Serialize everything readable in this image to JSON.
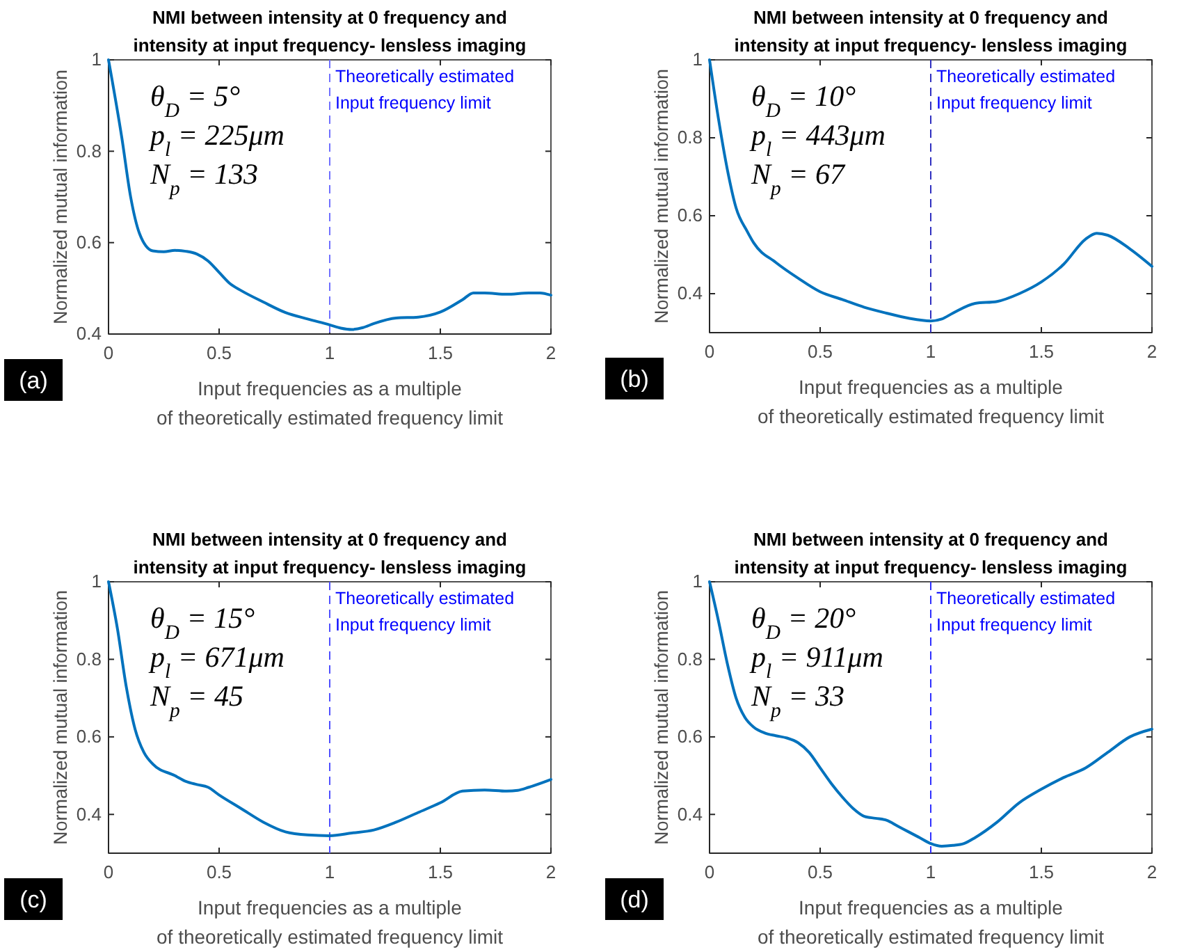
{
  "chart_data": [
    {
      "type": "line",
      "title": "NMI between intensity at 0 frequency and\nintensity at input frequency- lensless imaging",
      "xlabel": "Input frequencies as a multiple\nof theoretically estimated frequency limit",
      "ylabel": "Normalized mutual information",
      "xlim": [
        0,
        2
      ],
      "xticks": [
        0,
        0.5,
        1,
        1.5,
        2
      ],
      "ylim": [
        0.4,
        1
      ],
      "yticks": [
        0.4,
        0.6,
        0.8,
        1
      ],
      "grid": false,
      "marker": "none",
      "line_style": "solid",
      "ref_lines": [
        {
          "axis": "x",
          "value": 1,
          "label": "Theoretically estimated\nInput frequency limit",
          "color": "#7070ff",
          "line_style": "dashed"
        }
      ],
      "annotations": [
        "θ$_{D}$ = 5°",
        "p$_{l}$ = 225μm",
        "N$_{p}$ = 133",
        "(a)"
      ],
      "series": [
        {
          "color": "#0072bd",
          "x": [
            0,
            0.06,
            0.1,
            0.14,
            0.2,
            0.25,
            0.3,
            0.35,
            0.4,
            0.45,
            0.5,
            0.55,
            0.6,
            0.7,
            0.8,
            0.9,
            1.0,
            1.05,
            1.1,
            1.15,
            1.2,
            1.3,
            1.4,
            1.5,
            1.6,
            1.65,
            1.7,
            1.8,
            1.9,
            1.95,
            2.0
          ],
          "values": [
            1.0,
            0.83,
            0.7,
            0.62,
            0.582,
            0.58,
            0.583,
            0.581,
            0.575,
            0.56,
            0.535,
            0.51,
            0.495,
            0.47,
            0.447,
            0.433,
            0.42,
            0.413,
            0.41,
            0.414,
            0.423,
            0.435,
            0.437,
            0.448,
            0.475,
            0.49,
            0.49,
            0.487,
            0.49,
            0.49,
            0.485
          ]
        }
      ]
    },
    {
      "type": "line",
      "title": "NMI between intensity at 0 frequency and\nintensity at input frequency- lensless imaging",
      "xlabel": "Input frequencies as a multiple\nof theoretically estimated frequency limit",
      "ylabel": "Normalized mutual information",
      "xlim": [
        0,
        2
      ],
      "xticks": [
        0,
        0.5,
        1,
        1.5,
        2
      ],
      "ylim": [
        0.3,
        1
      ],
      "yticks": [
        0.4,
        0.6,
        0.8,
        1
      ],
      "grid": false,
      "marker": "none",
      "line_style": "solid",
      "ref_lines": [
        {
          "axis": "x",
          "value": 1,
          "label": "Theoretically estimated\nInput frequency limit",
          "color": "#3030c0",
          "line_style": "dashed"
        }
      ],
      "annotations": [
        "θ$_{D}$ = 10°",
        "p$_{l}$ = 443μm",
        "N$_{p}$ = 67",
        "(b)"
      ],
      "series": [
        {
          "color": "#0072bd",
          "x": [
            0,
            0.04,
            0.08,
            0.12,
            0.17,
            0.2,
            0.3,
            0.4,
            0.5,
            0.6,
            0.7,
            0.8,
            0.9,
            1.0,
            1.05,
            1.1,
            1.2,
            1.3,
            1.4,
            1.5,
            1.6,
            1.7,
            1.75,
            1.8,
            1.9,
            2.0
          ],
          "values": [
            1.0,
            0.85,
            0.72,
            0.62,
            0.56,
            0.53,
            0.48,
            0.44,
            0.405,
            0.385,
            0.365,
            0.35,
            0.337,
            0.33,
            0.335,
            0.35,
            0.375,
            0.38,
            0.4,
            0.43,
            0.475,
            0.54,
            0.555,
            0.55,
            0.515,
            0.47
          ]
        }
      ]
    },
    {
      "type": "line",
      "title": "NMI between intensity at 0 frequency and\nintensity at input frequency- lensless imaging",
      "xlabel": "Input frequencies as a multiple\nof theoretically estimated frequency limit",
      "ylabel": "Normalized mutual information",
      "xlim": [
        0,
        2
      ],
      "xticks": [
        0,
        0.5,
        1,
        1.5,
        2
      ],
      "ylim": [
        0.3,
        1
      ],
      "yticks": [
        0.4,
        0.6,
        0.8,
        1
      ],
      "grid": false,
      "marker": "none",
      "line_style": "solid",
      "ref_lines": [
        {
          "axis": "x",
          "value": 1,
          "label": "Theoretically estimated\nInput frequency limit",
          "color": "#5050ff",
          "line_style": "dashed"
        }
      ],
      "annotations": [
        "θ$_{D}$ = 15°",
        "p$_{l}$ = 671μm",
        "N$_{p}$ = 45",
        "(c)"
      ],
      "series": [
        {
          "color": "#0072bd",
          "x": [
            0,
            0.04,
            0.08,
            0.12,
            0.16,
            0.2,
            0.3,
            0.35,
            0.4,
            0.45,
            0.5,
            0.6,
            0.7,
            0.8,
            0.9,
            1.0,
            1.1,
            1.2,
            1.3,
            1.4,
            1.5,
            1.6,
            1.7,
            1.8,
            1.85,
            1.9,
            2.0
          ],
          "values": [
            1.0,
            0.88,
            0.73,
            0.62,
            0.56,
            0.53,
            0.5,
            0.485,
            0.477,
            0.47,
            0.45,
            0.415,
            0.38,
            0.355,
            0.347,
            0.345,
            0.352,
            0.36,
            0.38,
            0.405,
            0.43,
            0.46,
            0.463,
            0.46,
            0.462,
            0.47,
            0.49
          ]
        }
      ]
    },
    {
      "type": "line",
      "title": "NMI between intensity at 0 frequency and\nintensity at input frequency- lensless imaging",
      "xlabel": "Input frequencies as a multiple\nof theoretically estimated frequency limit",
      "ylabel": "Normalized mutual information",
      "xlim": [
        0,
        2
      ],
      "xticks": [
        0,
        0.5,
        1,
        1.5,
        2
      ],
      "ylim": [
        0.3,
        1
      ],
      "yticks": [
        0.4,
        0.6,
        0.8,
        1
      ],
      "grid": false,
      "marker": "none",
      "line_style": "solid",
      "ref_lines": [
        {
          "axis": "x",
          "value": 1,
          "label": "Theoretically estimated\nInput frequency limit",
          "color": "#3030ff",
          "line_style": "dashed"
        }
      ],
      "annotations": [
        "θ$_{D}$ = 20°",
        "p$_{l}$ = 911μm",
        "N$_{p}$ = 33",
        "(d)"
      ],
      "series": [
        {
          "color": "#0072bd",
          "x": [
            0,
            0.04,
            0.08,
            0.12,
            0.16,
            0.2,
            0.25,
            0.3,
            0.35,
            0.4,
            0.45,
            0.5,
            0.55,
            0.6,
            0.65,
            0.7,
            0.75,
            0.8,
            0.85,
            0.9,
            0.95,
            1.0,
            1.05,
            1.1,
            1.15,
            1.2,
            1.3,
            1.4,
            1.5,
            1.6,
            1.7,
            1.8,
            1.9,
            2.0
          ],
          "values": [
            1.0,
            0.9,
            0.79,
            0.7,
            0.65,
            0.625,
            0.61,
            0.603,
            0.597,
            0.585,
            0.56,
            0.52,
            0.48,
            0.445,
            0.415,
            0.395,
            0.39,
            0.385,
            0.37,
            0.355,
            0.34,
            0.325,
            0.318,
            0.32,
            0.325,
            0.34,
            0.38,
            0.43,
            0.465,
            0.495,
            0.52,
            0.56,
            0.6,
            0.62
          ]
        }
      ]
    }
  ]
}
